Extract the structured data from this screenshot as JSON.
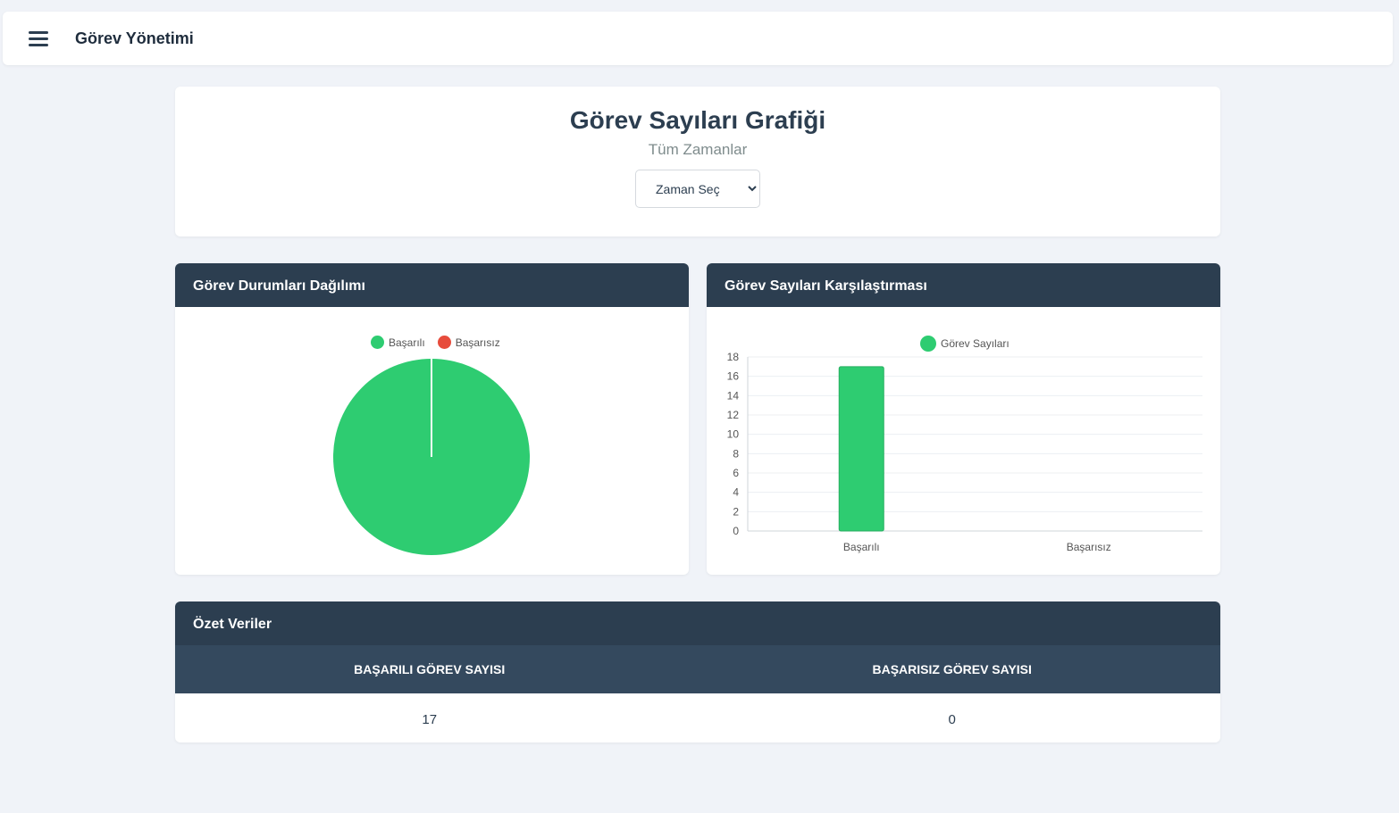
{
  "app": {
    "title": "Görev Yönetimi"
  },
  "header": {
    "title": "Görev Sayıları Grafiği",
    "subtitle": "Tüm Zamanlar",
    "time_select": {
      "selected": "Zaman Seç"
    }
  },
  "pie_panel": {
    "title": "Görev Durumları Dağılımı"
  },
  "bar_panel": {
    "title": "Görev Sayıları Karşılaştırması"
  },
  "summary": {
    "title": "Özet Veriler",
    "headers": [
      "Başarılı Görev Sayısı",
      "Başarısız Görev Sayısı"
    ],
    "values": [
      "17",
      "0"
    ]
  },
  "colors": {
    "success": "#2ecc71",
    "failure": "#e74c3c",
    "dark": "#2c3e50",
    "table_head": "#34495e"
  },
  "chart_data": [
    {
      "type": "pie",
      "categories": [
        "Başarılı",
        "Başarısız"
      ],
      "values": [
        17,
        0
      ],
      "legend": [
        "Başarılı",
        "Başarısız"
      ],
      "legend_position": "top"
    },
    {
      "type": "bar",
      "categories": [
        "Başarılı",
        "Başarısız"
      ],
      "series": [
        {
          "name": "Görev Sayıları",
          "values": [
            17,
            0
          ]
        }
      ],
      "yticks": [
        0,
        2,
        4,
        6,
        8,
        10,
        12,
        14,
        16,
        18
      ],
      "ylim": [
        0,
        18
      ],
      "grid": true,
      "legend_position": "top"
    }
  ]
}
